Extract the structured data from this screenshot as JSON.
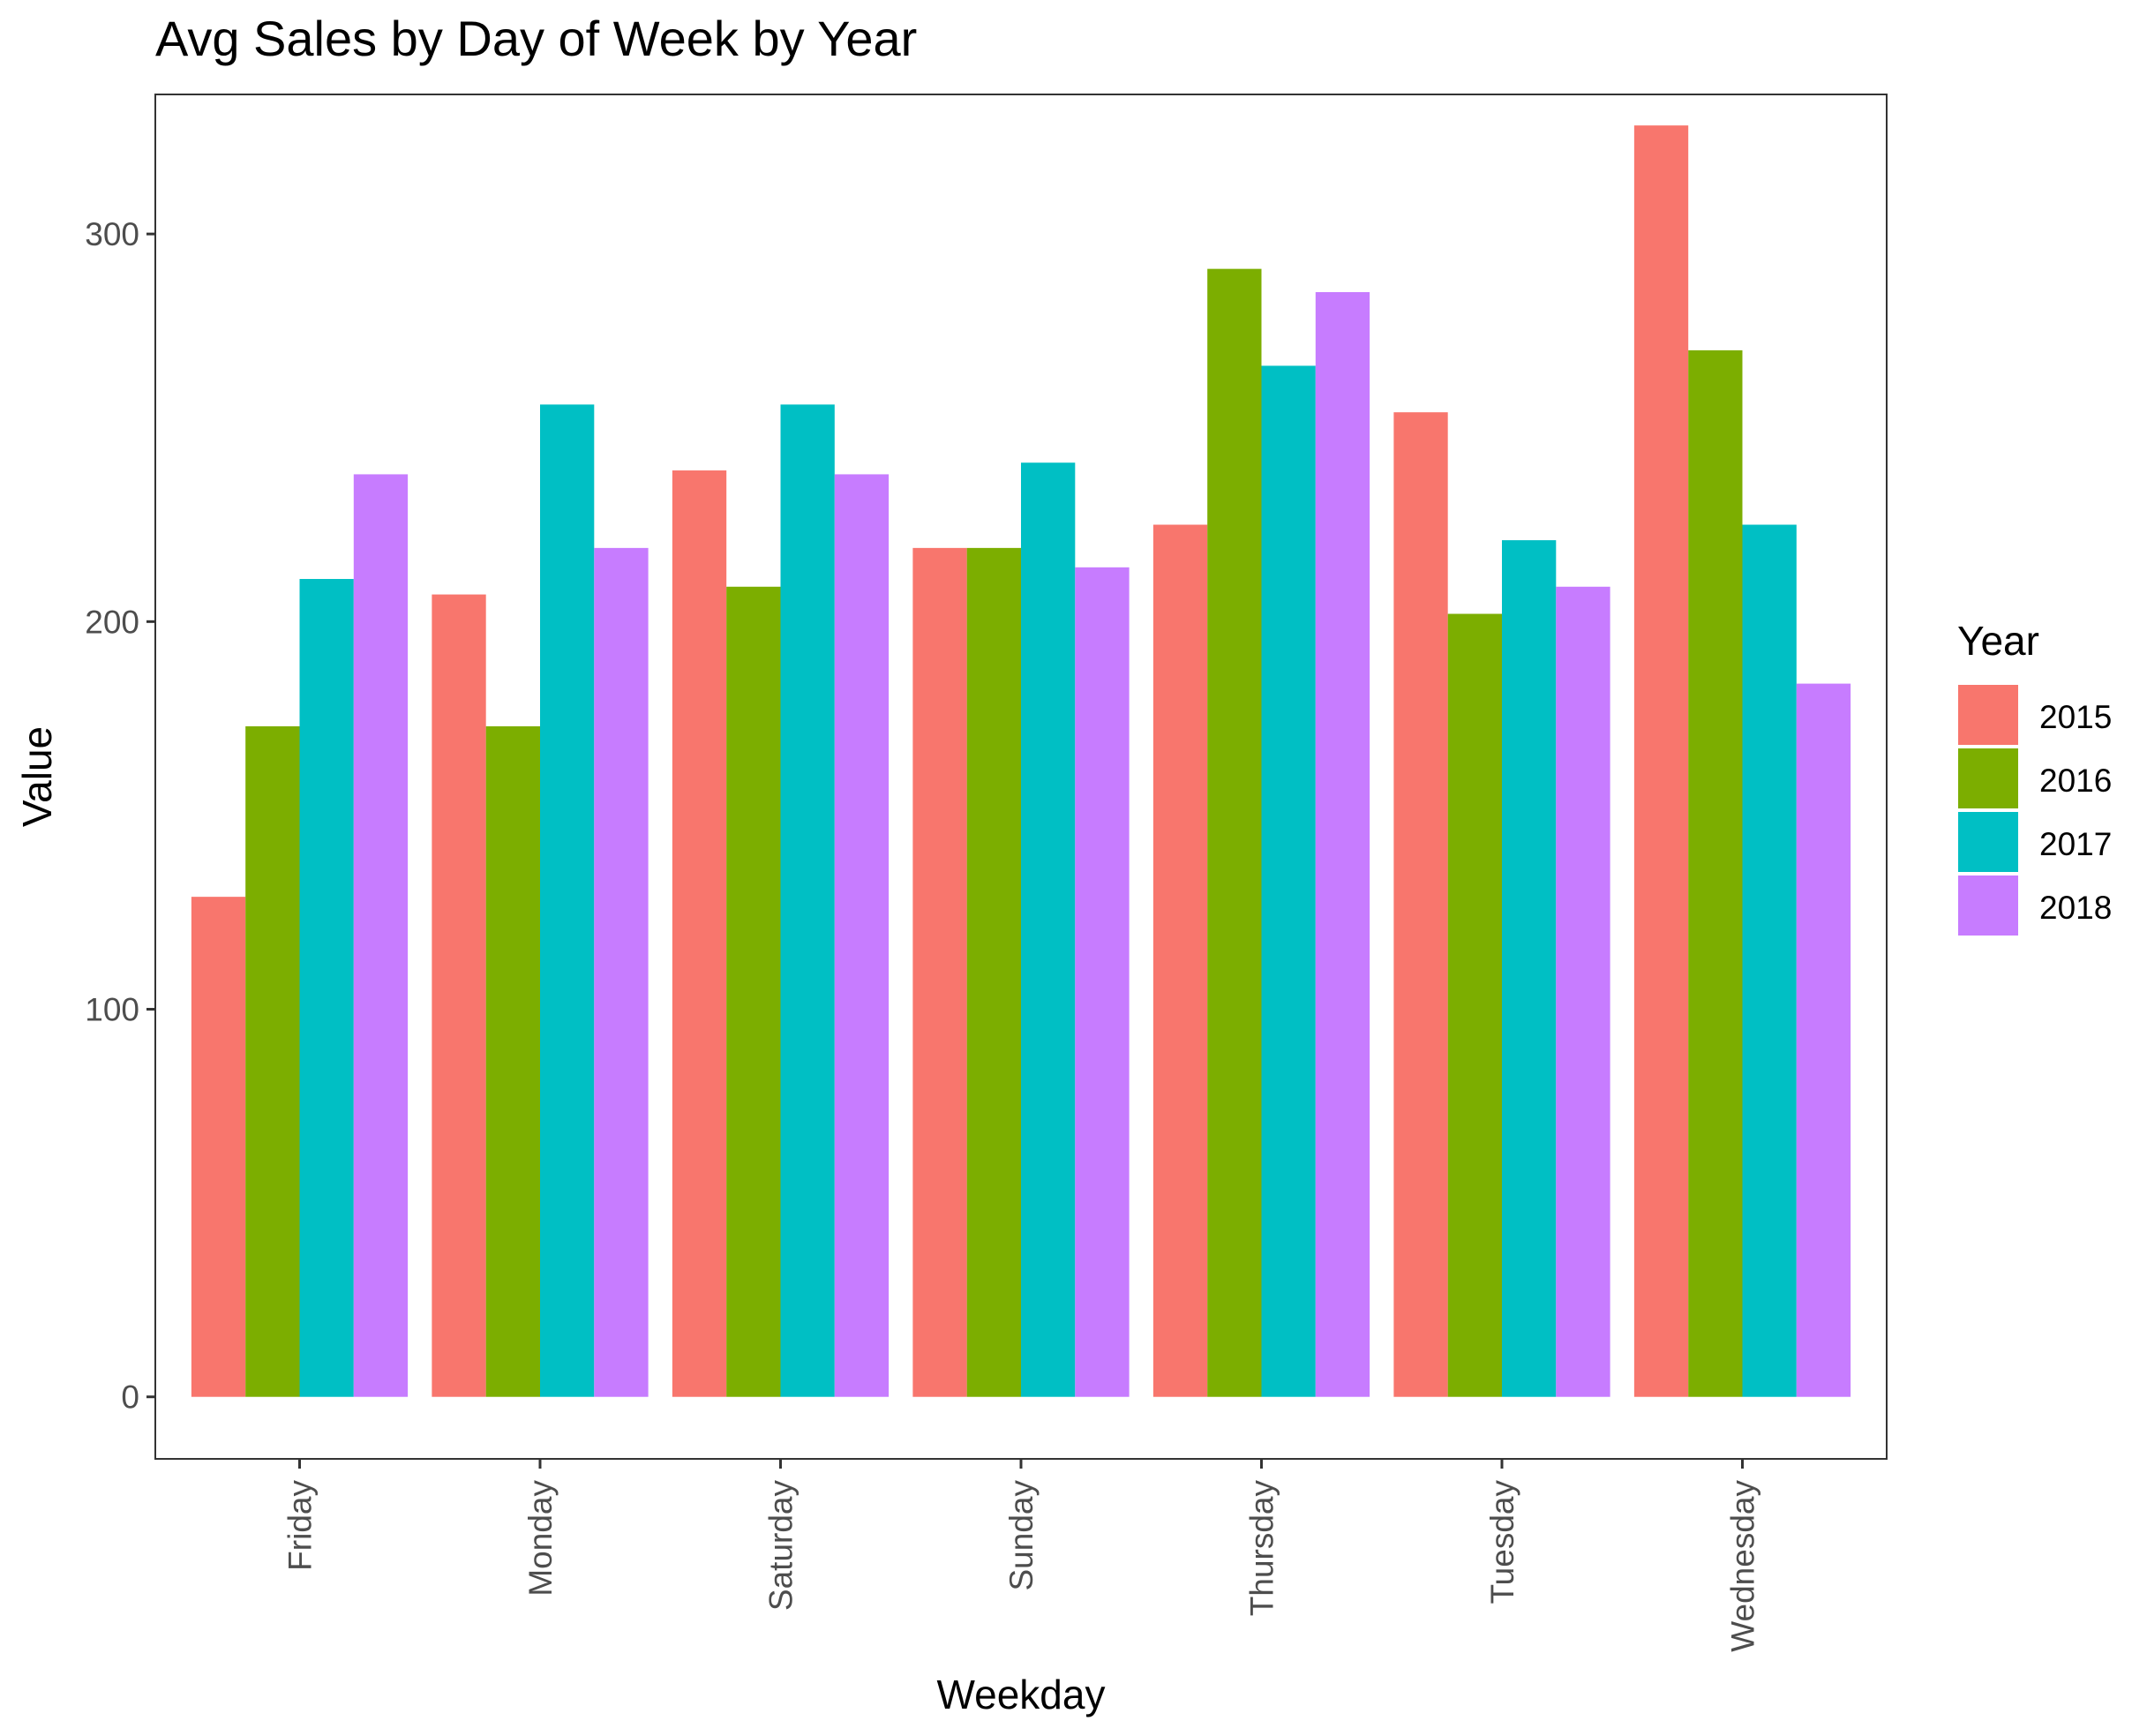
{
  "chart_data": {
    "type": "bar",
    "title": "Avg Sales by Day of Week by Year",
    "xlabel": "Weekday",
    "ylabel": "Value",
    "ylim": [
      -16,
      336
    ],
    "yticks": [
      0,
      100,
      200,
      300
    ],
    "grid": false,
    "legend_position": "right",
    "legend_title": "Year",
    "categories": [
      "Friday",
      "Monday",
      "Saturday",
      "Sunday",
      "Thursday",
      "Tuesday",
      "Wednesday"
    ],
    "series": [
      {
        "name": "2015",
        "color": "#F8766D",
        "values": [
          129,
          207,
          239,
          219,
          225,
          254,
          328
        ]
      },
      {
        "name": "2016",
        "color": "#7CAE00",
        "values": [
          173,
          173,
          209,
          219,
          291,
          202,
          270
        ]
      },
      {
        "name": "2017",
        "color": "#00BFC4",
        "values": [
          211,
          256,
          256,
          241,
          266,
          221,
          225
        ]
      },
      {
        "name": "2018",
        "color": "#C77CFF",
        "values": [
          238,
          219,
          238,
          214,
          285,
          209,
          184
        ]
      }
    ]
  }
}
